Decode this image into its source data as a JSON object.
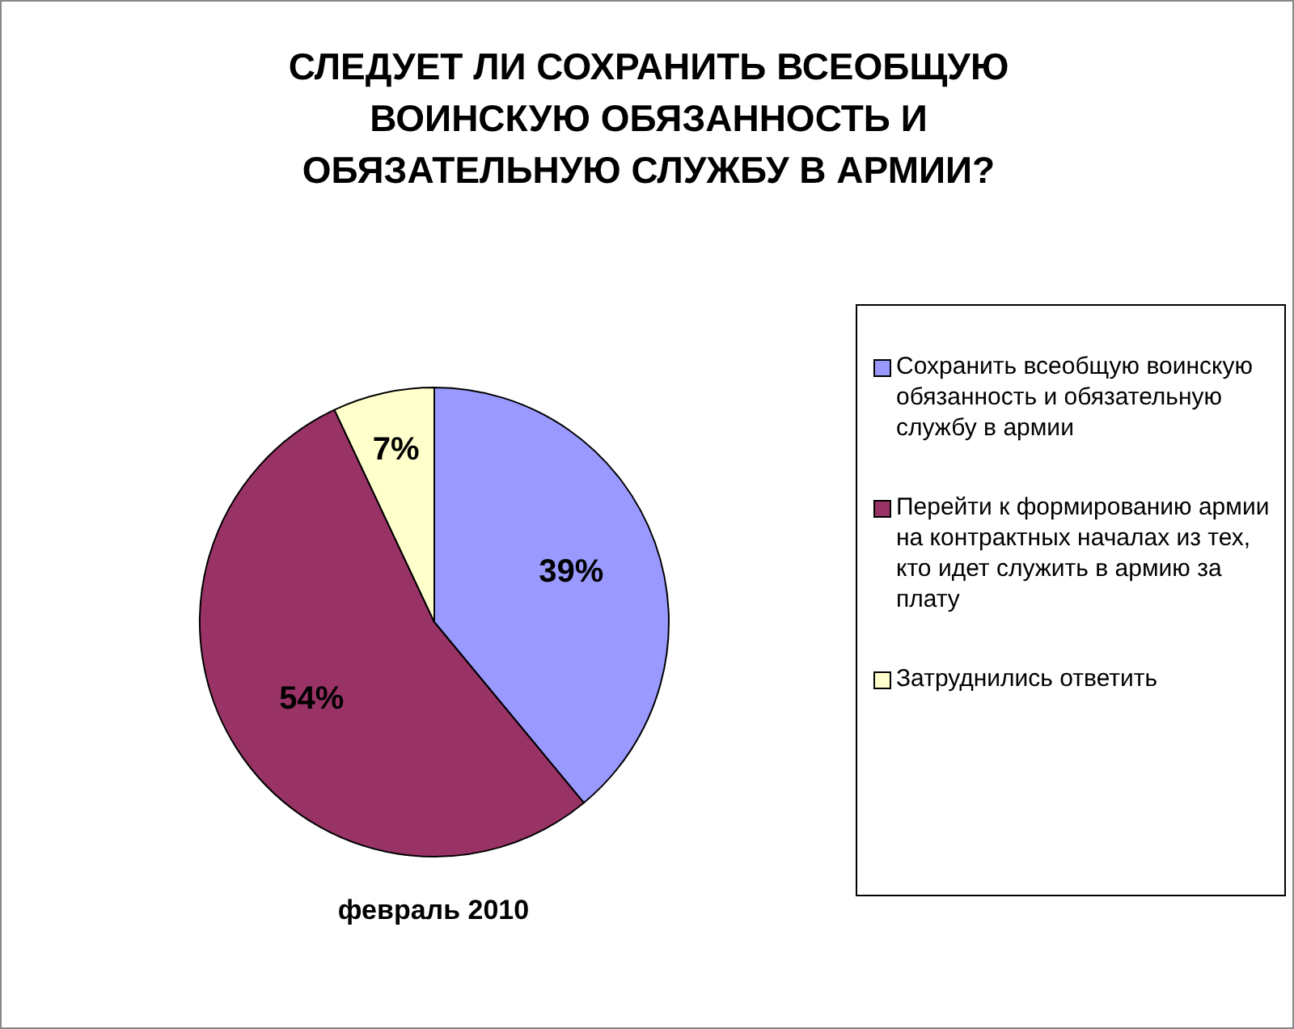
{
  "chart_data": {
    "type": "pie",
    "title": "СЛЕДУЕТ ЛИ СОХРАНИТЬ ВСЕОБЩУЮ ВОИНСКУЮ ОБЯЗАННОСТЬ И ОБЯЗАТЕЛЬНУЮ СЛУЖБУ В АРМИИ?",
    "categories": [
      "Сохранить всеобщую воинскую обязанность и обязательную службу в армии",
      "Перейти к формированию армии на контрактных началах из тех, кто идет служить в армию за плату",
      "Затруднились ответить"
    ],
    "values": [
      39,
      54,
      7
    ],
    "colors": [
      "#9999ff",
      "#993366",
      "#ffffcc"
    ],
    "value_labels": [
      "39%",
      "54%",
      "7%"
    ],
    "legend": "right",
    "annotations": [
      "февраль 2010"
    ]
  }
}
